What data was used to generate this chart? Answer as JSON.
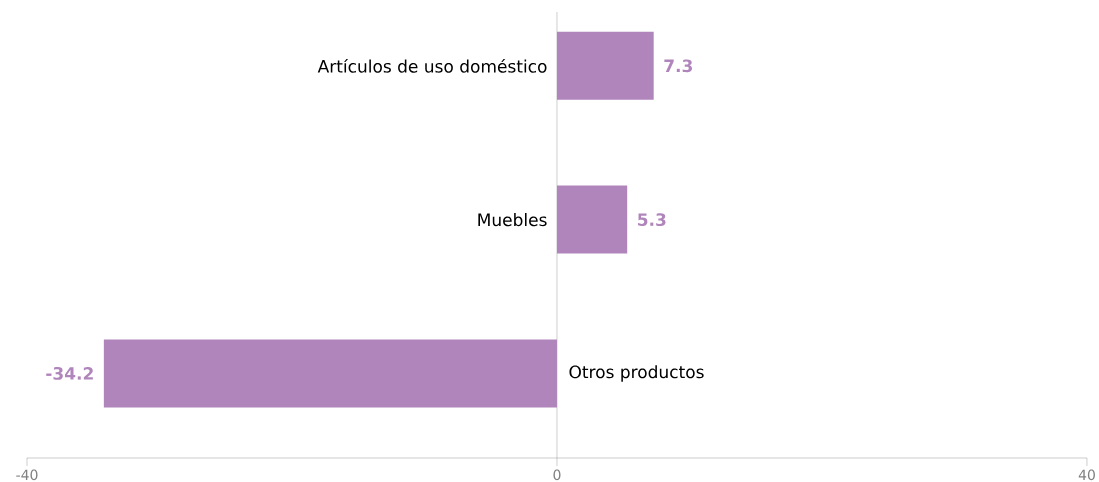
{
  "chart_data": {
    "type": "bar",
    "orientation": "horizontal",
    "categories": [
      "Artículos de uso doméstico",
      "Muebles",
      "Otros productos"
    ],
    "values": [
      7.3,
      5.3,
      -34.2
    ],
    "color": "#b085bb",
    "xlim": [
      -40,
      40
    ],
    "xticks": [
      -40,
      0,
      40
    ],
    "data_labels": true,
    "grid": false
  }
}
